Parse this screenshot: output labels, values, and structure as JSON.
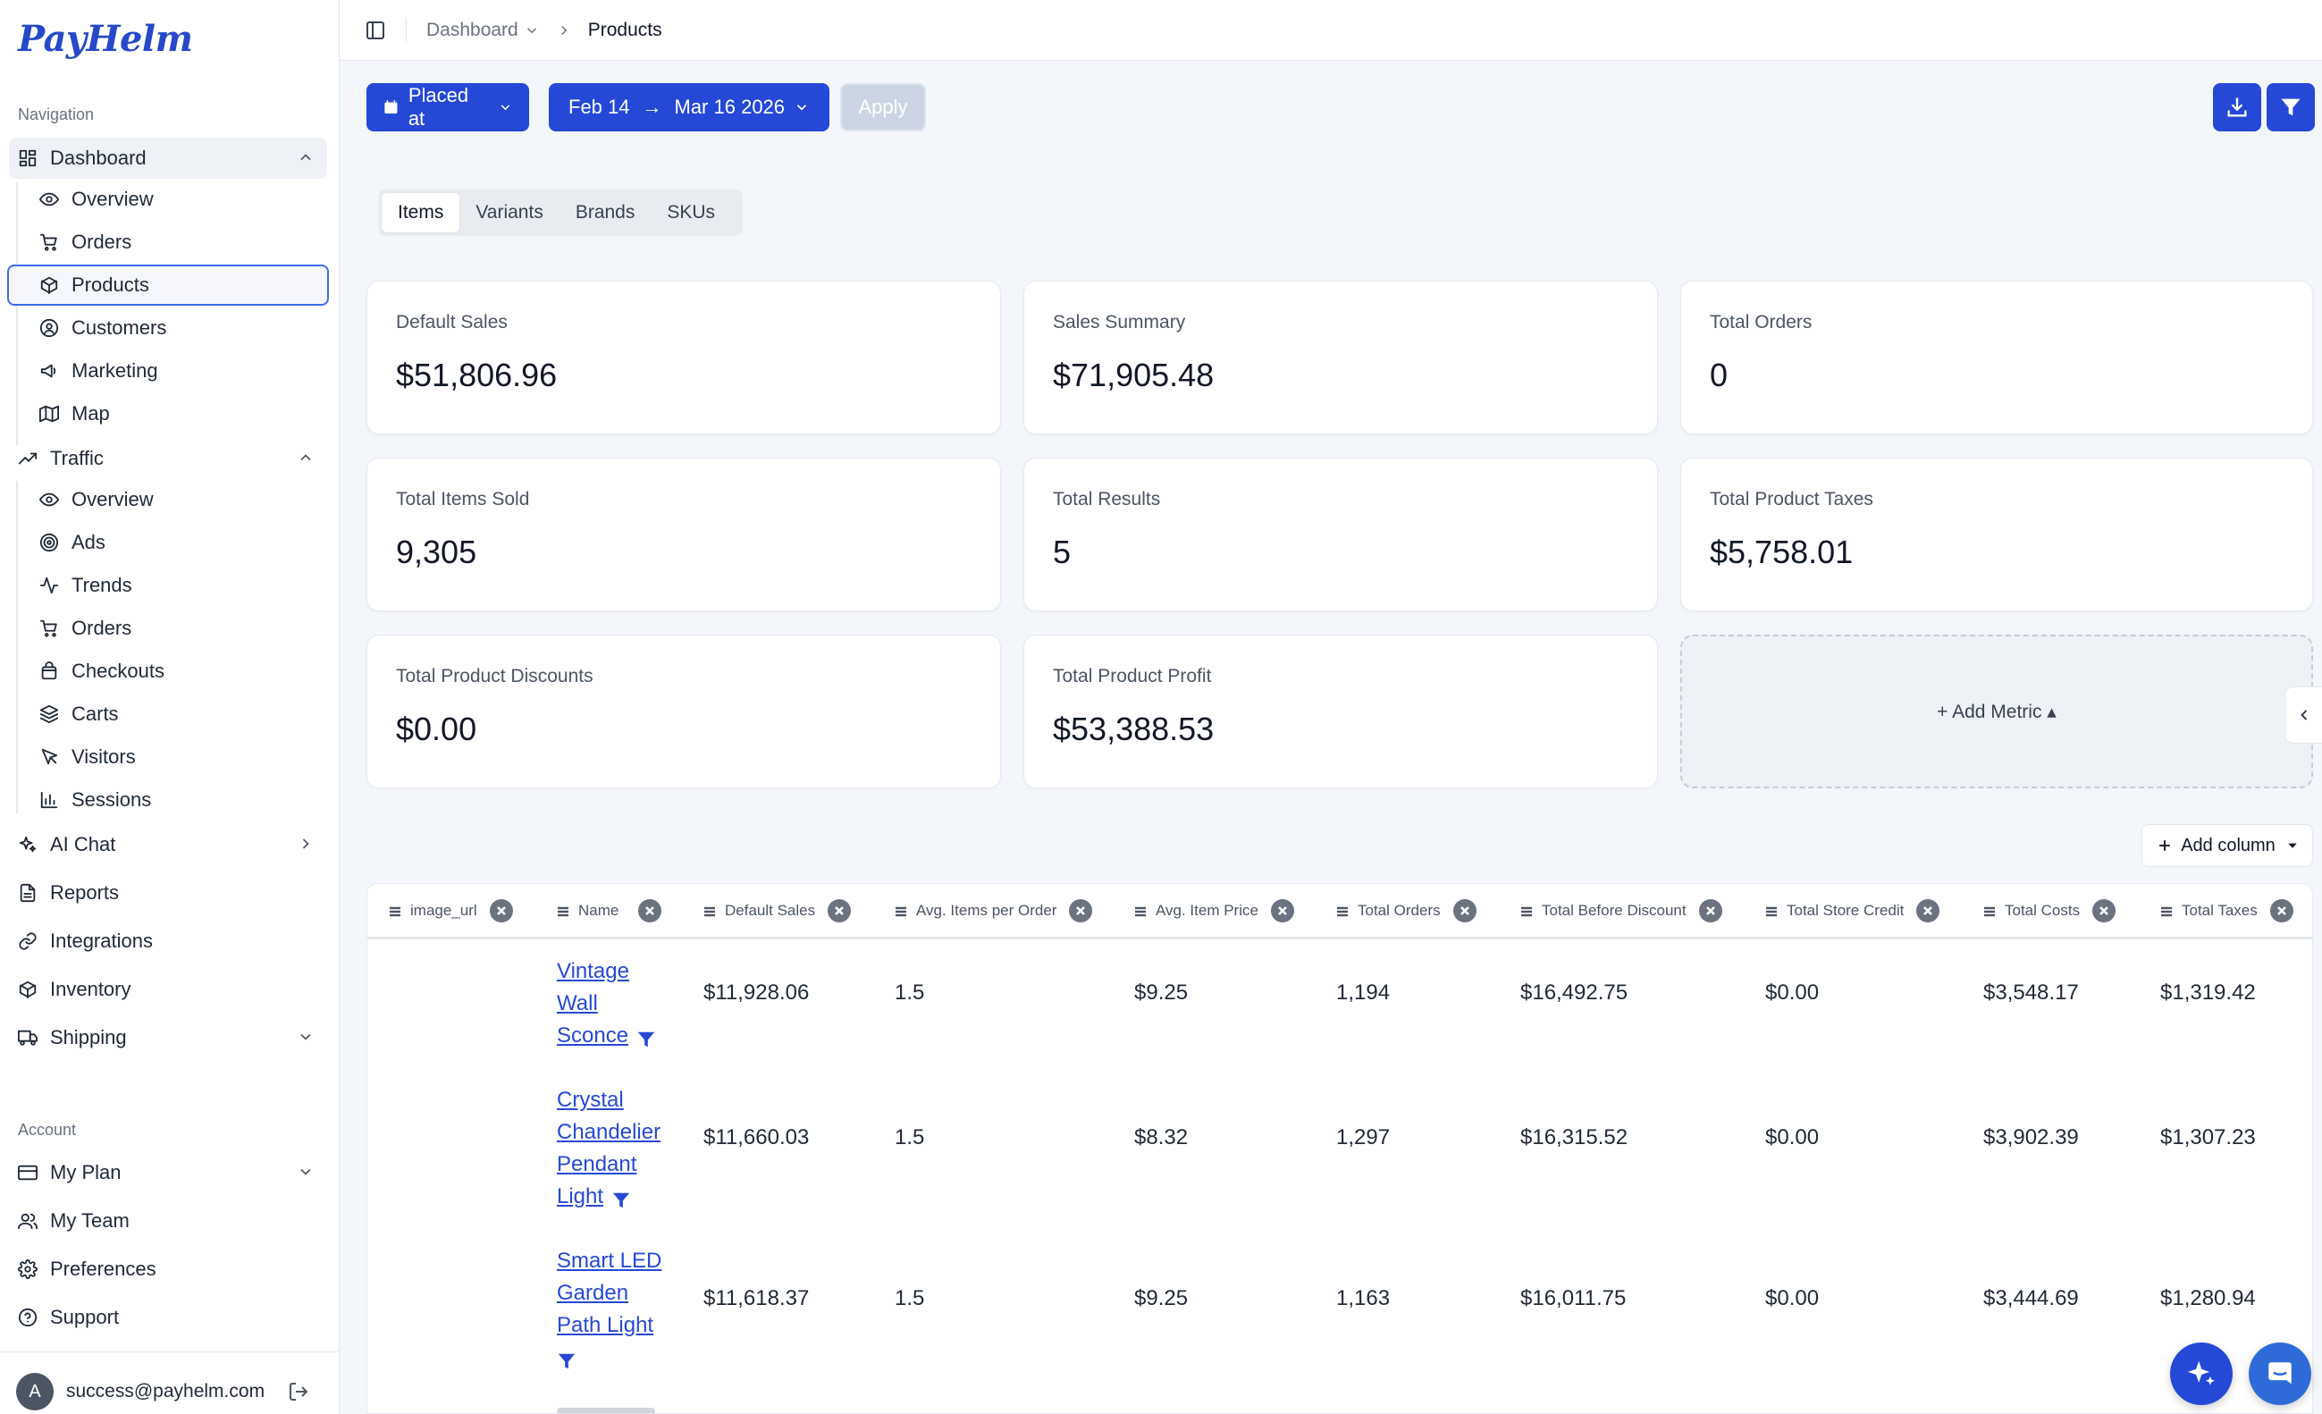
{
  "brand": {
    "logo_text": "PayHelm",
    "accent": "#2549d6"
  },
  "sidebar": {
    "navigation_label": "Navigation",
    "account_label": "Account",
    "dashboard": {
      "label": "Dashboard",
      "icon": "dashboard-grid-icon",
      "children": [
        {
          "label": "Overview",
          "icon": "eye-icon"
        },
        {
          "label": "Orders",
          "icon": "cart-icon"
        },
        {
          "label": "Products",
          "icon": "box-icon",
          "selected": true
        },
        {
          "label": "Customers",
          "icon": "user-circle-icon"
        },
        {
          "label": "Marketing",
          "icon": "megaphone-icon"
        },
        {
          "label": "Map",
          "icon": "map-icon"
        }
      ]
    },
    "traffic": {
      "label": "Traffic",
      "icon": "trending-up-icon",
      "children": [
        {
          "label": "Overview",
          "icon": "eye-icon"
        },
        {
          "label": "Ads",
          "icon": "target-icon"
        },
        {
          "label": "Trends",
          "icon": "activity-icon"
        },
        {
          "label": "Orders",
          "icon": "cart-icon"
        },
        {
          "label": "Checkouts",
          "icon": "bag-icon"
        },
        {
          "label": "Carts",
          "icon": "layers-icon"
        },
        {
          "label": "Visitors",
          "icon": "cursor-icon"
        },
        {
          "label": "Sessions",
          "icon": "bar-chart-icon"
        }
      ]
    },
    "ai_chat": "AI Chat",
    "reports": "Reports",
    "integrations": "Integrations",
    "inventory": "Inventory",
    "shipping": "Shipping",
    "my_plan": "My Plan",
    "my_team": "My Team",
    "preferences": "Preferences",
    "support": "Support",
    "user": {
      "avatar_initial": "A",
      "email": "success@payhelm.com"
    }
  },
  "breadcrumb": {
    "parent": "Dashboard",
    "current": "Products"
  },
  "filters": {
    "date_field": "Placed at",
    "date_from": "Feb 14",
    "arrow": "→",
    "date_to": "Mar 16 2026",
    "apply": "Apply"
  },
  "tabs": [
    "Items",
    "Variants",
    "Brands",
    "SKUs"
  ],
  "metrics": [
    {
      "label": "Default Sales",
      "value": "$51,806.96"
    },
    {
      "label": "Sales Summary",
      "value": "$71,905.48"
    },
    {
      "label": "Total Orders",
      "value": "0"
    },
    {
      "label": "Total Items Sold",
      "value": "9,305"
    },
    {
      "label": "Total Results",
      "value": "5"
    },
    {
      "label": "Total Product Taxes",
      "value": "$5,758.01"
    },
    {
      "label": "Total Product Discounts",
      "value": "$0.00"
    },
    {
      "label": "Total Product Profit",
      "value": "$53,388.53"
    }
  ],
  "add_metric": "+ Add Metric ▴",
  "add_column": "Add column",
  "table": {
    "columns": [
      "image_url",
      "Name",
      "Default Sales",
      "Avg. Items per Order",
      "Avg. Item Price",
      "Total Orders",
      "Total Before Discount",
      "Total Store Credit",
      "Total Costs",
      "Total Taxes"
    ],
    "rows": [
      {
        "name_lines": [
          "Vintage",
          "Wall",
          "Sconce"
        ],
        "default_sales": "$11,928.06",
        "avg_items": "1.5",
        "avg_price": "$9.25",
        "total_orders": "1,194",
        "before_discount": "$16,492.75",
        "store_credit": "$0.00",
        "costs": "$3,548.17",
        "taxes": "$1,319.42"
      },
      {
        "name_lines": [
          "Crystal",
          "Chandelier",
          "Pendant",
          "Light"
        ],
        "default_sales": "$11,660.03",
        "avg_items": "1.5",
        "avg_price": "$8.32",
        "total_orders": "1,297",
        "before_discount": "$16,315.52",
        "store_credit": "$0.00",
        "costs": "$3,902.39",
        "taxes": "$1,307.23"
      },
      {
        "name_lines": [
          "Smart LED",
          "Garden",
          "Path Light"
        ],
        "default_sales": "$11,618.37",
        "avg_items": "1.5",
        "avg_price": "$9.25",
        "total_orders": "1,163",
        "before_discount": "$16,011.75",
        "store_credit": "$0.00",
        "costs": "$3,444.69",
        "taxes": "$1,280.94"
      }
    ]
  }
}
